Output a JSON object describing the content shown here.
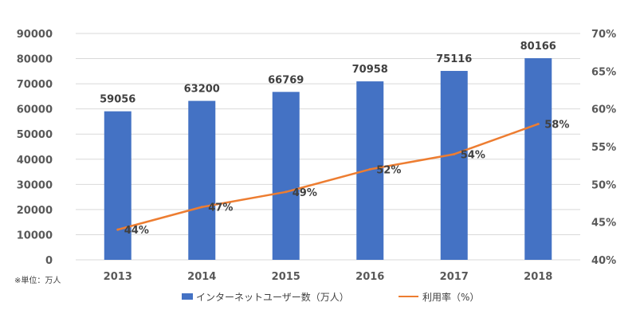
{
  "chart_data": {
    "type": "bar",
    "categories": [
      "2013",
      "2014",
      "2015",
      "2016",
      "2017",
      "2018"
    ],
    "series": [
      {
        "name": "インターネットユーザー数（万人）",
        "type": "bar",
        "axis": "left",
        "color": "#4472c4",
        "values": [
          59056,
          63200,
          66769,
          70958,
          75116,
          80166
        ],
        "labels": [
          "59056",
          "63200",
          "66769",
          "70958",
          "75116",
          "80166"
        ]
      },
      {
        "name": "利用率（%）",
        "type": "line",
        "axis": "right",
        "color": "#ed7d31",
        "values": [
          44,
          47,
          49,
          52,
          54,
          58
        ],
        "labels": [
          "44%",
          "47%",
          "49%",
          "52%",
          "54%",
          "58%"
        ]
      }
    ],
    "y_left": {
      "range": [
        0,
        90000
      ],
      "ticks": [
        "0",
        "10000",
        "20000",
        "30000",
        "40000",
        "50000",
        "60000",
        "70000",
        "80000",
        "90000"
      ]
    },
    "y_right": {
      "range": [
        40,
        70
      ],
      "ticks": [
        "40%",
        "45%",
        "50%",
        "55%",
        "60%",
        "65%",
        "70%"
      ]
    },
    "grid": true,
    "gridColor": "#d9d9d9",
    "legend_position": "bottom",
    "unit_note": "※単位：万人"
  }
}
